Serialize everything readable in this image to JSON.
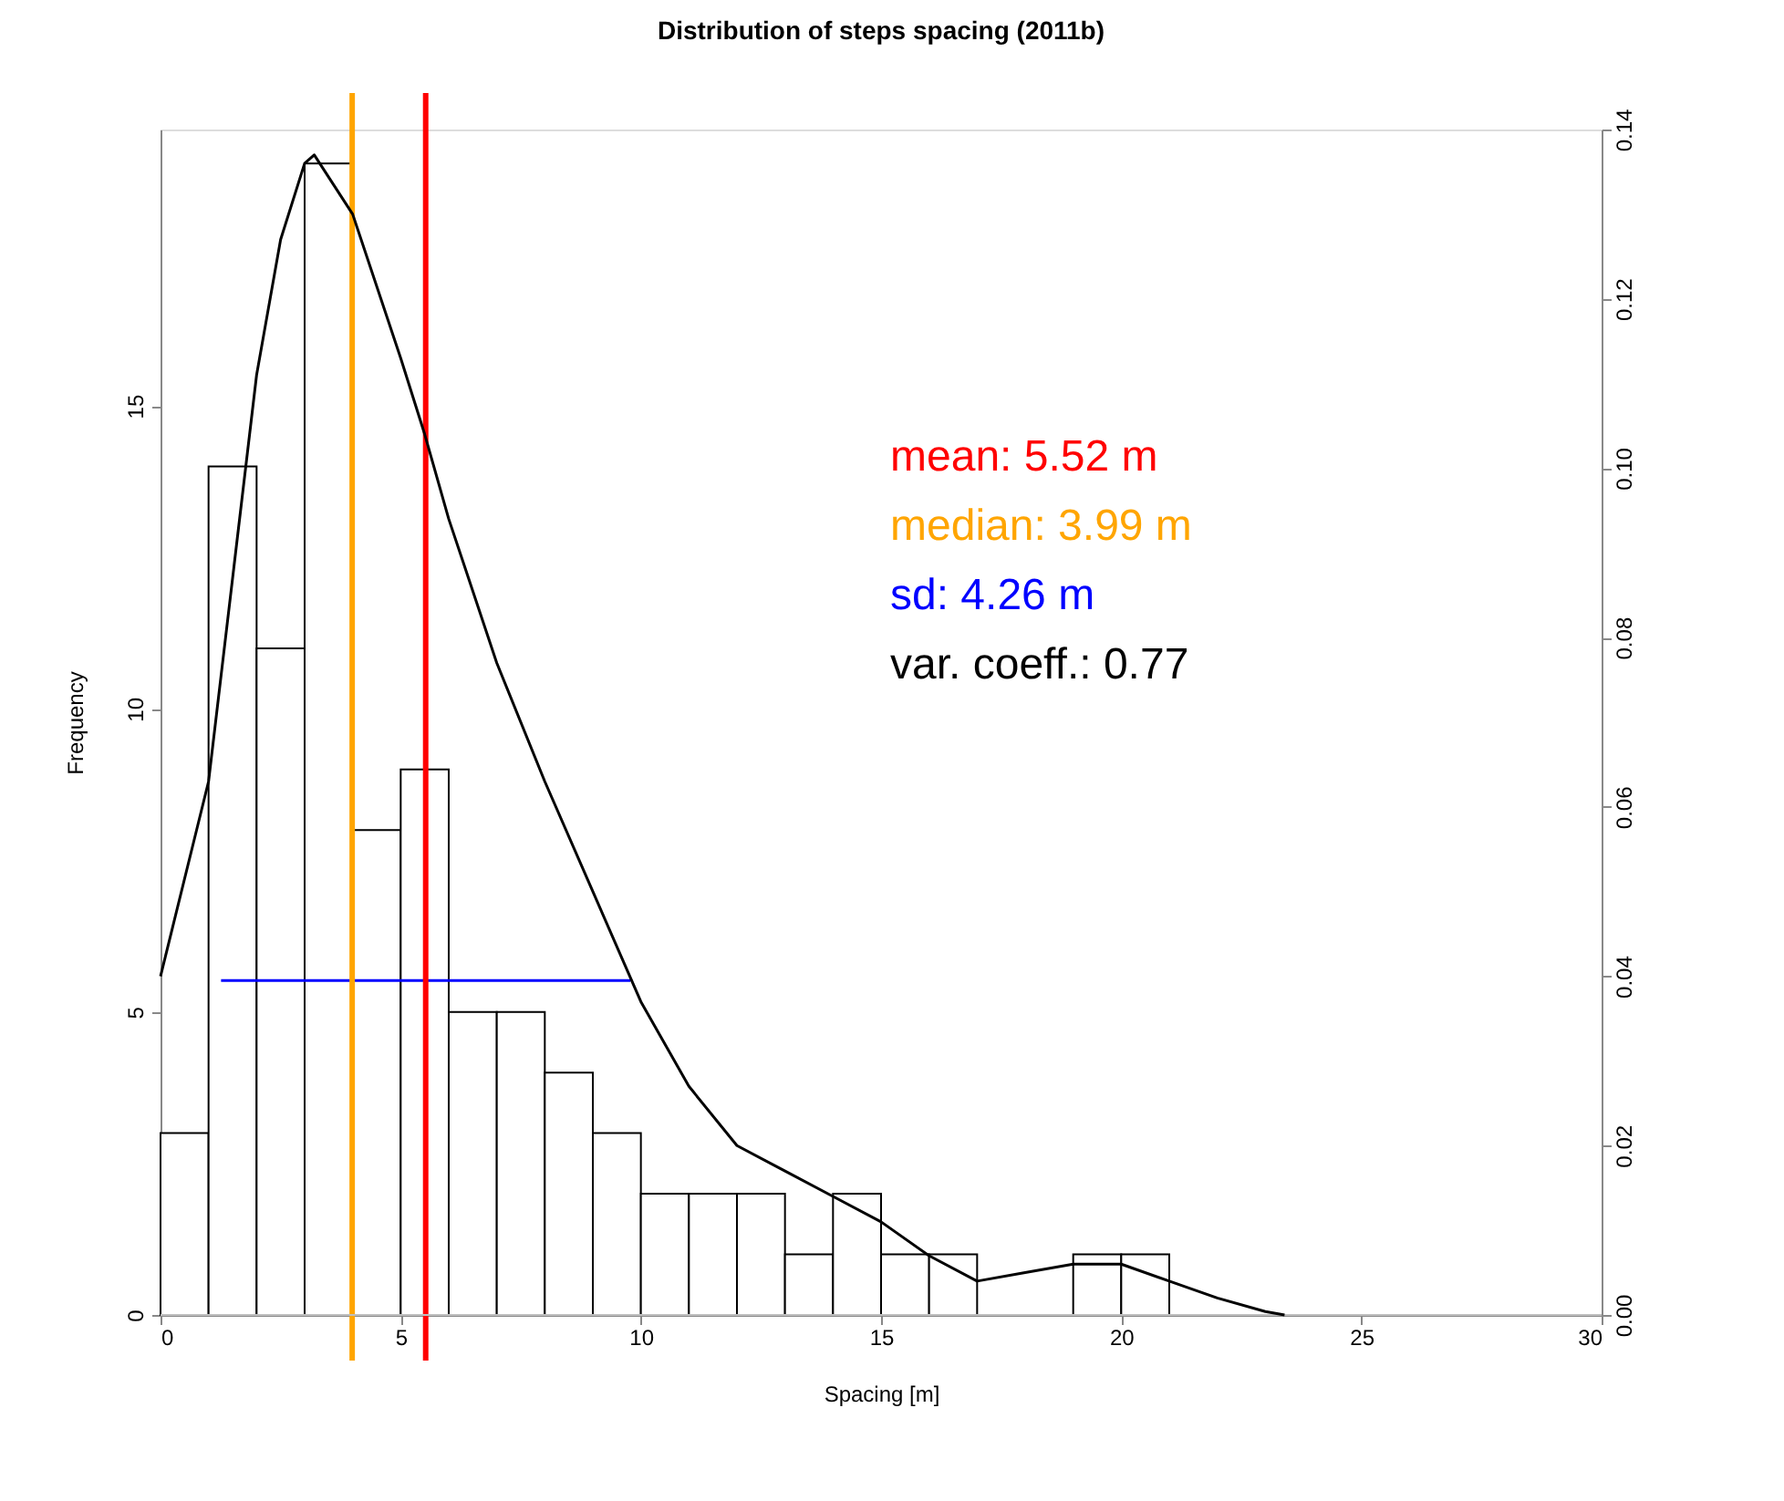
{
  "chart_data": {
    "type": "histogram",
    "title": "Distribution of steps spacing (2011b)",
    "xlabel": "Spacing [m]",
    "ylabel": "Frequency",
    "bins": [
      0,
      1,
      2,
      3,
      4,
      5,
      6,
      7,
      8,
      9,
      10,
      11,
      12,
      13,
      14,
      15,
      16,
      17,
      18,
      19,
      20,
      21
    ],
    "values": [
      3,
      14,
      11,
      19,
      8,
      9,
      5,
      5,
      4,
      3,
      2,
      2,
      2,
      1,
      2,
      1,
      1,
      0,
      0,
      1,
      1
    ],
    "color": "#ffffff",
    "series": [
      {
        "type": "line",
        "axis": "y2",
        "color": "#000000",
        "x": [
          0,
          1,
          2,
          2.5,
          3,
          3.2,
          4,
          5,
          5.5,
          6,
          7,
          8,
          9,
          10,
          11,
          12,
          13,
          14,
          15,
          16,
          17,
          18,
          19,
          20,
          21,
          22,
          23,
          23.4
        ],
        "values": [
          0.04,
          0.063,
          0.111,
          0.127,
          0.136,
          0.137,
          0.13,
          0.113,
          0.104,
          0.094,
          0.077,
          0.063,
          0.05,
          0.037,
          0.027,
          0.02,
          0.017,
          0.014,
          0.011,
          0.007,
          0.004,
          0.005,
          0.006,
          0.006,
          0.004,
          0.002,
          0.0004,
          0
        ]
      },
      {
        "type": "line",
        "name": "sd: 4.26 m",
        "color": "#0000ff",
        "x": [
          1.26,
          9.78
        ],
        "values": [
          5.52,
          5.52
        ]
      }
    ],
    "ref_lines": [
      {
        "axis": "x",
        "value": 5.52,
        "label": "mean: 5.52 m",
        "color": "#ff0000"
      },
      {
        "axis": "x",
        "value": 3.99,
        "label": "median: 3.99 m",
        "color": "#ffa500"
      },
      {
        "axis": "y",
        "value": 0,
        "color": "#bebebe"
      }
    ],
    "annotations": [
      "var. coeff.: 0.77"
    ],
    "xlim": [
      0,
      30
    ],
    "xticks": [
      0,
      5,
      10,
      15,
      20,
      25,
      30
    ],
    "ylim": [
      0,
      19.56
    ],
    "yticks": [
      0,
      5,
      10,
      15
    ],
    "y2lim": [
      0,
      0.14
    ],
    "y2ticks": [
      {
        "value": 0,
        "label": "0.00"
      },
      0.02,
      0.04,
      0.06,
      0.08,
      {
        "value": 0.1,
        "label": "0.10"
      },
      0.12,
      0.14
    ],
    "grid": false
  }
}
